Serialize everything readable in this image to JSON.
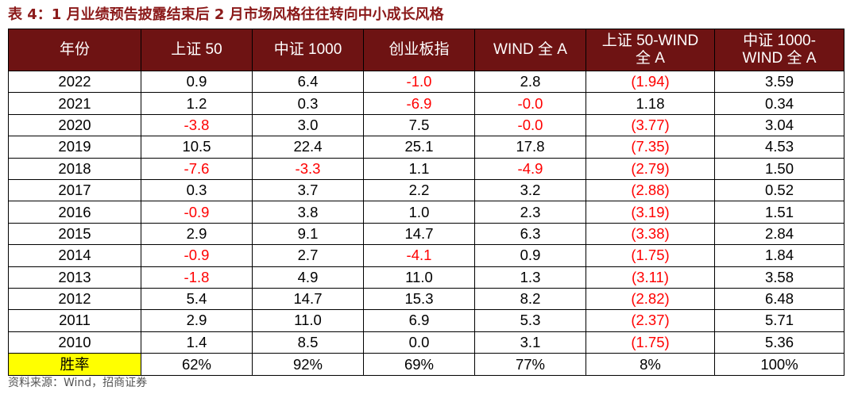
{
  "title": "表 4：1 月业绩预告披露结束后 2 月市场风格往往转向中小成长风格",
  "headers": [
    "年份",
    "上证 50",
    "中证 1000",
    "创业板指",
    "WIND 全 A",
    "上证 50-WIND 全 A",
    "中证 1000-WIND 全 A"
  ],
  "rows": [
    {
      "year": "2022",
      "sz50": "0.9",
      "zz1000": "6.4",
      "cyb": "-1.0",
      "wind": "2.8",
      "d1": "(1.94)",
      "d2": "3.59"
    },
    {
      "year": "2021",
      "sz50": "1.2",
      "zz1000": "0.3",
      "cyb": "-6.9",
      "wind": "-0.0",
      "d1": "1.18",
      "d2": "0.34"
    },
    {
      "year": "2020",
      "sz50": "-3.8",
      "zz1000": "3.0",
      "cyb": "7.5",
      "wind": "-0.0",
      "d1": "(3.77)",
      "d2": "3.04"
    },
    {
      "year": "2019",
      "sz50": "10.5",
      "zz1000": "22.4",
      "cyb": "25.1",
      "wind": "17.8",
      "d1": "(7.35)",
      "d2": "4.53"
    },
    {
      "year": "2018",
      "sz50": "-7.6",
      "zz1000": "-3.3",
      "cyb": "1.1",
      "wind": "-4.9",
      "d1": "(2.79)",
      "d2": "1.50"
    },
    {
      "year": "2017",
      "sz50": "0.3",
      "zz1000": "3.7",
      "cyb": "2.2",
      "wind": "3.2",
      "d1": "(2.88)",
      "d2": "0.52"
    },
    {
      "year": "2016",
      "sz50": "-0.9",
      "zz1000": "3.8",
      "cyb": "1.0",
      "wind": "2.3",
      "d1": "(3.19)",
      "d2": "1.51"
    },
    {
      "year": "2015",
      "sz50": "2.9",
      "zz1000": "9.1",
      "cyb": "14.7",
      "wind": "6.3",
      "d1": "(3.38)",
      "d2": "2.84"
    },
    {
      "year": "2014",
      "sz50": "-0.9",
      "zz1000": "2.7",
      "cyb": "-4.1",
      "wind": "0.9",
      "d1": "(1.75)",
      "d2": "1.84"
    },
    {
      "year": "2013",
      "sz50": "-1.8",
      "zz1000": "4.9",
      "cyb": "11.0",
      "wind": "1.3",
      "d1": "(3.11)",
      "d2": "3.58"
    },
    {
      "year": "2012",
      "sz50": "5.4",
      "zz1000": "14.7",
      "cyb": "15.3",
      "wind": "8.2",
      "d1": "(2.82)",
      "d2": "6.48"
    },
    {
      "year": "2011",
      "sz50": "2.9",
      "zz1000": "11.0",
      "cyb": "6.9",
      "wind": "5.3",
      "d1": "(2.37)",
      "d2": "5.71"
    },
    {
      "year": "2010",
      "sz50": "1.4",
      "zz1000": "8.5",
      "cyb": "0.0",
      "wind": "3.1",
      "d1": "(1.75)",
      "d2": "5.36"
    }
  ],
  "winrate": {
    "label": "胜率",
    "sz50": "62%",
    "zz1000": "92%",
    "cyb": "69%",
    "wind": "77%",
    "d1": "8%",
    "d2": "100%"
  },
  "source": "资料来源：Wind，招商证券",
  "colors": {
    "header_bg": "#6e1313",
    "title": "#8b1a1a",
    "negative": "#ff0000",
    "highlight": "#ffff00"
  }
}
